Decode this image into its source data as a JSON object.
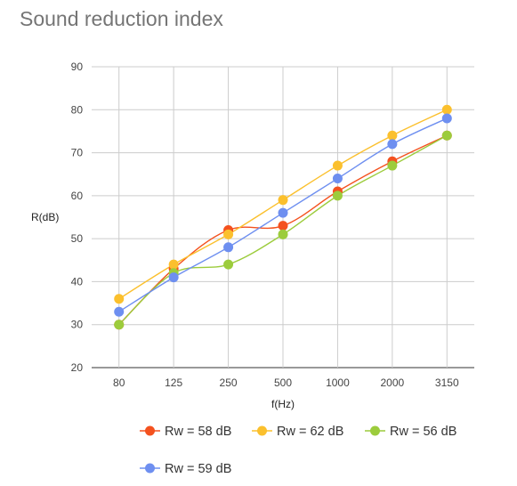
{
  "chart_data": {
    "type": "line",
    "title": "Sound reduction index",
    "xlabel": "f(Hz)",
    "ylabel": "R(dB)",
    "categories": [
      "80",
      "125",
      "250",
      "500",
      "1000",
      "2000",
      "3150"
    ],
    "ylim": [
      20,
      90
    ],
    "yticks": [
      20,
      30,
      40,
      50,
      60,
      70,
      80,
      90
    ],
    "grid": true,
    "legend_position": "bottom",
    "series": [
      {
        "name": "Rw = 58 dB",
        "color": "#f4511e",
        "values": [
          30,
          43,
          52,
          53,
          61,
          68,
          74
        ]
      },
      {
        "name": "Rw = 62 dB",
        "color": "#fbc02d",
        "values": [
          36,
          44,
          51,
          59,
          67,
          74,
          80
        ]
      },
      {
        "name": "Rw = 56 dB",
        "color": "#9ccc3c",
        "values": [
          30,
          42,
          44,
          51,
          60,
          67,
          74
        ]
      },
      {
        "name": "Rw = 59 dB",
        "color": "#6e8ff0",
        "values": [
          33,
          41,
          48,
          56,
          64,
          72,
          78
        ]
      }
    ]
  }
}
